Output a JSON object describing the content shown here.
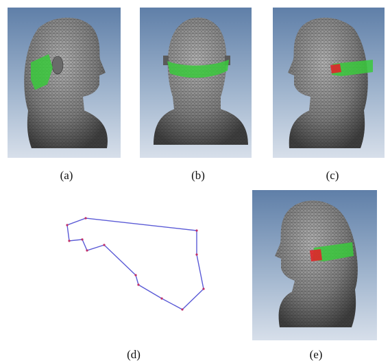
{
  "figure": {
    "panels": [
      {
        "id": "a",
        "caption": "(a)",
        "content": "head-mesh-side-right"
      },
      {
        "id": "b",
        "caption": "(b)",
        "content": "head-mesh-back"
      },
      {
        "id": "c",
        "caption": "(c)",
        "content": "head-mesh-side-left"
      },
      {
        "id": "d",
        "caption": "(d)",
        "content": "polygon-outline"
      },
      {
        "id": "e",
        "caption": "(e)",
        "content": "head-mesh-three-quarter"
      }
    ],
    "colors": {
      "background_top": "#5f7fa8",
      "background_bottom": "#d3dbe6",
      "mesh": "#8a8a8a",
      "mesh_dark": "#3a3a3a",
      "highlight_green": "#39c93c",
      "highlight_red": "#e0262a",
      "polygon_line": "#5a5ad6",
      "polygon_vertex": "#c0306a"
    }
  }
}
